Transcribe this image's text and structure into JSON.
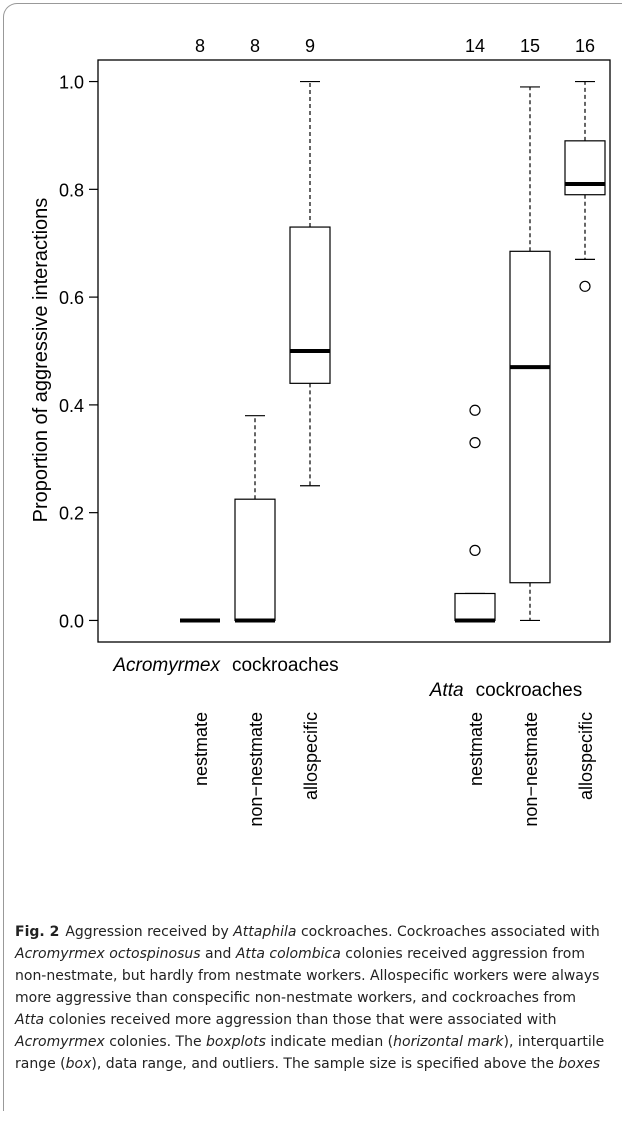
{
  "chart_data": {
    "type": "box",
    "y_label": "Proportion of aggressive interactions",
    "ylim": [
      -0.04,
      1.04
    ],
    "yticks": [
      {
        "value": 0,
        "label": "0.0"
      },
      0.2,
      0.4,
      0.6,
      0.8,
      {
        "value": 1,
        "label": "1.0"
      }
    ],
    "groups": [
      {
        "italic": "Acromyrmex",
        "label": "cockroaches"
      },
      {
        "italic": "Atta",
        "label": "cockroaches"
      }
    ],
    "categories": [
      "nestmate",
      "non−nestmate",
      "allospecific",
      "nestmate",
      "non−nestmate",
      "allospecific"
    ],
    "sample_sizes": [
      8,
      8,
      9,
      14,
      15,
      16
    ],
    "boxes": [
      {
        "min": 0,
        "q1": 0,
        "median": 0,
        "q3": 0,
        "max": 0,
        "outliers": []
      },
      {
        "min": 0,
        "q1": 0,
        "median": 0,
        "q3": 0.225,
        "max": 0.38,
        "outliers": []
      },
      {
        "min": 0.25,
        "q1": 0.44,
        "median": 0.5,
        "q3": 0.73,
        "max": 1.0,
        "outliers": []
      },
      {
        "min": 0,
        "q1": 0,
        "median": 0,
        "q3": 0.05,
        "max": 0.05,
        "outliers": [
          0.13,
          0.33,
          0.39
        ]
      },
      {
        "min": 0,
        "q1": 0.07,
        "median": 0.47,
        "q3": 0.685,
        "max": 0.99,
        "outliers": []
      },
      {
        "min": 0.67,
        "q1": 0.79,
        "median": 0.81,
        "q3": 0.89,
        "max": 1.0,
        "outliers": [
          0.62
        ]
      }
    ]
  },
  "caption": {
    "label": "Fig. 2",
    "parts": [
      "Aggression received by ",
      "Attaphila",
      " cockroaches. Cockroaches associated with ",
      "Acromyrmex octospinosus",
      " and ",
      "Atta colombica",
      " colonies received aggression from non-nestmate, but hardly from nestmate workers. Allospecific workers were always more aggressive than conspecific non-nestmate workers, and cockroaches from ",
      "Atta",
      " colonies received more aggression than those that were associated with ",
      "Acromyrmex",
      " colonies. The ",
      "boxplots",
      " indicate median (",
      "horizontal mark",
      "), interquartile range (",
      "box",
      "), data range, and outliers. The sample size is specified above the ",
      "boxes"
    ]
  }
}
